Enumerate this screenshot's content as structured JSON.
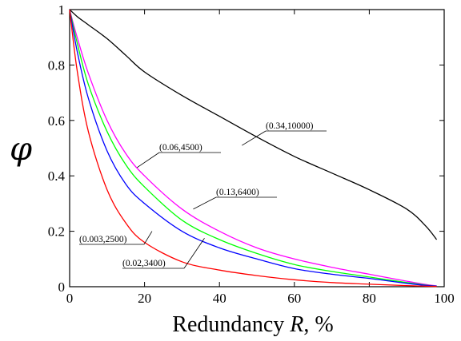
{
  "chart_data": {
    "type": "line",
    "xlabel": {
      "prefix": "Redundancy",
      "var": "R",
      "suffix": ", %"
    },
    "ylabel": "φ",
    "xlim": [
      0,
      100
    ],
    "ylim": [
      0,
      1
    ],
    "xticks": [
      "0",
      "20",
      "40",
      "60",
      "80",
      "100"
    ],
    "yticks": [
      "0",
      "0.2",
      "0.4",
      "0.6",
      "0.8",
      "1"
    ],
    "x": [
      0,
      2,
      5,
      10,
      15,
      20,
      30,
      40,
      50,
      60,
      70,
      80,
      90,
      95,
      98
    ],
    "series": [
      {
        "name": "(0.34,10000)",
        "color": "#000000",
        "values": [
          1.0,
          0.975,
          0.945,
          0.895,
          0.835,
          0.775,
          0.69,
          0.615,
          0.54,
          0.47,
          0.41,
          0.35,
          0.28,
          0.22,
          0.17
        ]
      },
      {
        "name": "(0.06,4500)",
        "color": "#ff00ff",
        "values": [
          1.0,
          0.9,
          0.77,
          0.6,
          0.48,
          0.4,
          0.28,
          0.2,
          0.14,
          0.1,
          0.07,
          0.045,
          0.02,
          0.008,
          0.003
        ]
      },
      {
        "name": "(0.13,6400)",
        "color": "#00ff00",
        "values": [
          1.0,
          0.88,
          0.73,
          0.56,
          0.44,
          0.36,
          0.24,
          0.17,
          0.12,
          0.08,
          0.055,
          0.035,
          0.015,
          0.006,
          0.002
        ]
      },
      {
        "name": "(0.02,3400)",
        "color": "#0000ff",
        "values": [
          1.0,
          0.85,
          0.68,
          0.49,
          0.37,
          0.3,
          0.2,
          0.14,
          0.1,
          0.065,
          0.045,
          0.03,
          0.012,
          0.005,
          0.002
        ]
      },
      {
        "name": "(0.003,2500)",
        "color": "#ff0000",
        "values": [
          1.0,
          0.78,
          0.56,
          0.35,
          0.23,
          0.16,
          0.09,
          0.06,
          0.04,
          0.025,
          0.015,
          0.009,
          0.004,
          0.002,
          0.001
        ]
      }
    ]
  }
}
